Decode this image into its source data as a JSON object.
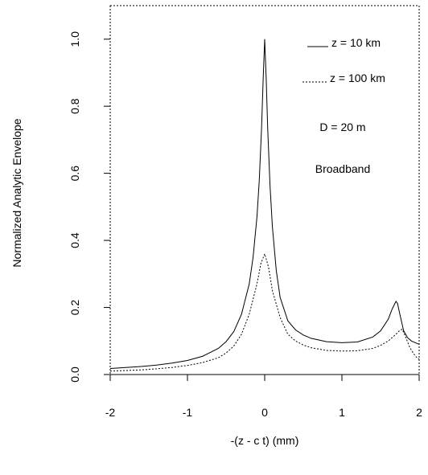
{
  "chart_data": {
    "type": "line",
    "xlabel": "-(z - c t) (mm)",
    "ylabel": "Normalized Analytic Envelope",
    "xlim": [
      -2,
      2
    ],
    "ylim": [
      0,
      1.1
    ],
    "x_ticks": [
      -2,
      -1,
      0,
      1,
      2
    ],
    "x_tick_labels": [
      "-2",
      "-1",
      "0",
      "1",
      "2"
    ],
    "y_ticks": [
      0,
      0.2,
      0.4,
      0.6,
      0.8,
      1.0
    ],
    "y_tick_labels": [
      "0.0",
      "0.2",
      "0.4",
      "0.6",
      "0.8",
      "1.0"
    ],
    "grid": false,
    "legend_position": "top-right",
    "series": [
      {
        "name": "z = 10 km",
        "line_style": "solid",
        "x": [
          -2,
          -1.8,
          -1.6,
          -1.4,
          -1.2,
          -1.0,
          -0.8,
          -0.6,
          -0.5,
          -0.4,
          -0.3,
          -0.2,
          -0.15,
          -0.1,
          -0.07,
          -0.04,
          -0.02,
          0,
          0.02,
          0.04,
          0.07,
          0.1,
          0.15,
          0.2,
          0.3,
          0.4,
          0.5,
          0.6,
          0.8,
          1.0,
          1.2,
          1.4,
          1.5,
          1.6,
          1.65,
          1.7,
          1.72,
          1.75,
          1.8,
          1.85,
          1.9,
          2.0
        ],
        "y": [
          0.018,
          0.021,
          0.024,
          0.028,
          0.034,
          0.042,
          0.055,
          0.078,
          0.098,
          0.128,
          0.18,
          0.27,
          0.35,
          0.47,
          0.58,
          0.74,
          0.88,
          1.0,
          0.88,
          0.73,
          0.56,
          0.44,
          0.31,
          0.23,
          0.16,
          0.133,
          0.118,
          0.108,
          0.098,
          0.095,
          0.097,
          0.112,
          0.13,
          0.165,
          0.195,
          0.218,
          0.212,
          0.18,
          0.13,
          0.11,
          0.1,
          0.09
        ]
      },
      {
        "name": "z = 100 km",
        "line_style": "dotted",
        "x": [
          -2,
          -1.8,
          -1.6,
          -1.4,
          -1.2,
          -1.0,
          -0.8,
          -0.6,
          -0.5,
          -0.4,
          -0.3,
          -0.2,
          -0.1,
          -0.05,
          0,
          0.05,
          0.1,
          0.2,
          0.3,
          0.4,
          0.5,
          0.6,
          0.8,
          1.0,
          1.2,
          1.4,
          1.5,
          1.6,
          1.7,
          1.75,
          1.78,
          1.82,
          1.88,
          1.95,
          2.0
        ],
        "y": [
          0.01,
          0.012,
          0.014,
          0.017,
          0.021,
          0.027,
          0.036,
          0.05,
          0.064,
          0.085,
          0.12,
          0.18,
          0.27,
          0.33,
          0.36,
          0.32,
          0.25,
          0.17,
          0.12,
          0.1,
          0.088,
          0.08,
          0.072,
          0.07,
          0.071,
          0.078,
          0.087,
          0.1,
          0.12,
          0.132,
          0.135,
          0.115,
          0.08,
          0.055,
          0.045
        ]
      }
    ],
    "legend": [
      {
        "label": "z = 10 km",
        "line_style": "solid"
      },
      {
        "label": "z = 100 km",
        "line_style": "dotted"
      }
    ],
    "annotations": [
      "D = 20 m",
      "Broadband"
    ]
  }
}
